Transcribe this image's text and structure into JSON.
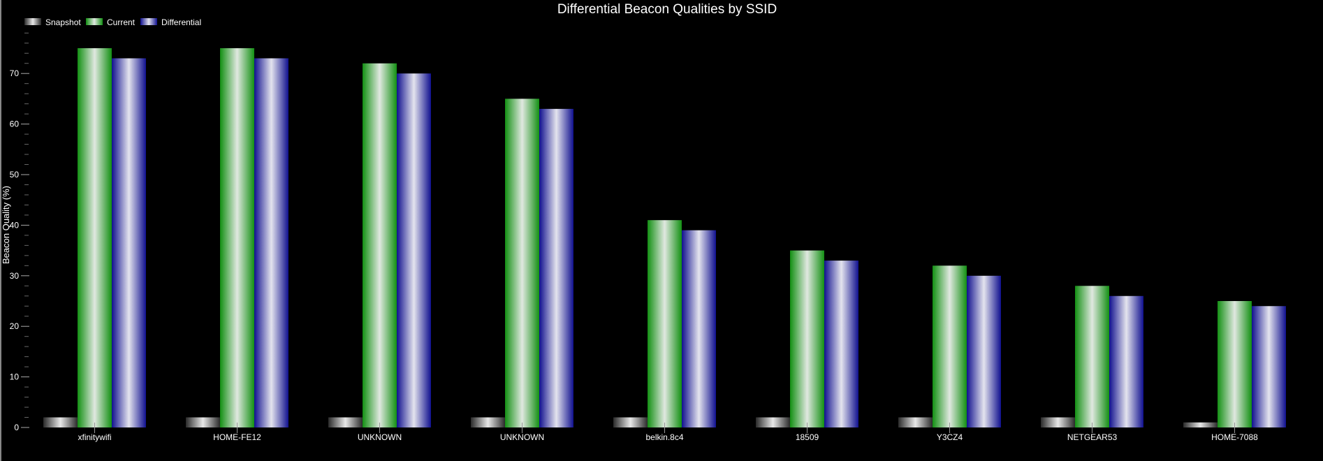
{
  "chart_data": {
    "type": "bar",
    "title": "Differential Beacon Qualities by SSID",
    "xlabel": "",
    "ylabel": "Beacon Quality (%)",
    "ylim": [
      0,
      78
    ],
    "yticks": [
      0,
      10,
      20,
      30,
      40,
      50,
      60,
      70
    ],
    "grid": false,
    "legend_placement": "top-left",
    "categories": [
      "xfinitywifi",
      "HOME-FE12",
      "UNKNOWN",
      "UNKNOWN",
      "belkin.8c4",
      "18509",
      "Y3CZ4",
      "NETGEAR53",
      "HOME-7088"
    ],
    "series": [
      {
        "name": "Snapshot",
        "values": [
          2,
          2,
          2,
          2,
          2,
          2,
          2,
          2,
          1
        ],
        "colors": [
          "#2a2a2a",
          "#e8e8e8"
        ]
      },
      {
        "name": "Current",
        "values": [
          75,
          75,
          72,
          65,
          41,
          35,
          32,
          28,
          25
        ],
        "colors": [
          "#139013",
          "#e0e8e0"
        ]
      },
      {
        "name": "Differential",
        "values": [
          73,
          73,
          70,
          63,
          39,
          33,
          30,
          26,
          24
        ],
        "colors": [
          "#10108f",
          "#e4e4ee"
        ]
      }
    ]
  }
}
